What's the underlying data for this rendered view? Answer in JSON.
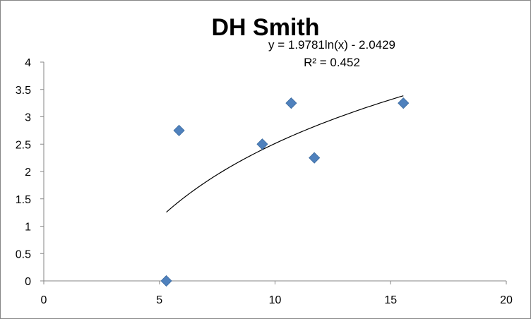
{
  "chart_data": {
    "type": "scatter",
    "title": "DH Smith",
    "xlabel": "",
    "ylabel": "",
    "xlim": [
      0,
      20
    ],
    "ylim": [
      0,
      4
    ],
    "x_ticks": [
      "0",
      "5",
      "10",
      "15",
      "20"
    ],
    "y_ticks": [
      "0",
      "0.5",
      "1",
      "1.5",
      "2",
      "2.5",
      "3",
      "3.5",
      "4"
    ],
    "grid": false,
    "legend": "none",
    "series": [
      {
        "marker": "diamond",
        "color": "#4F81BD",
        "points": [
          {
            "x": 5.3,
            "y": 0
          },
          {
            "x": 5.85,
            "y": 2.75
          },
          {
            "x": 9.45,
            "y": 2.5
          },
          {
            "x": 10.7,
            "y": 3.25
          },
          {
            "x": 11.7,
            "y": 2.25
          },
          {
            "x": 15.55,
            "y": 3.25
          }
        ]
      }
    ],
    "trendline": {
      "type": "logarithmic",
      "a": 1.9781,
      "b": -2.0429,
      "x_range": [
        5.3,
        15.55
      ],
      "equation_text": "y = 1.9781ln(x) - 2.0429",
      "r2_text": "R² = 0.452",
      "color": "#000000"
    }
  }
}
